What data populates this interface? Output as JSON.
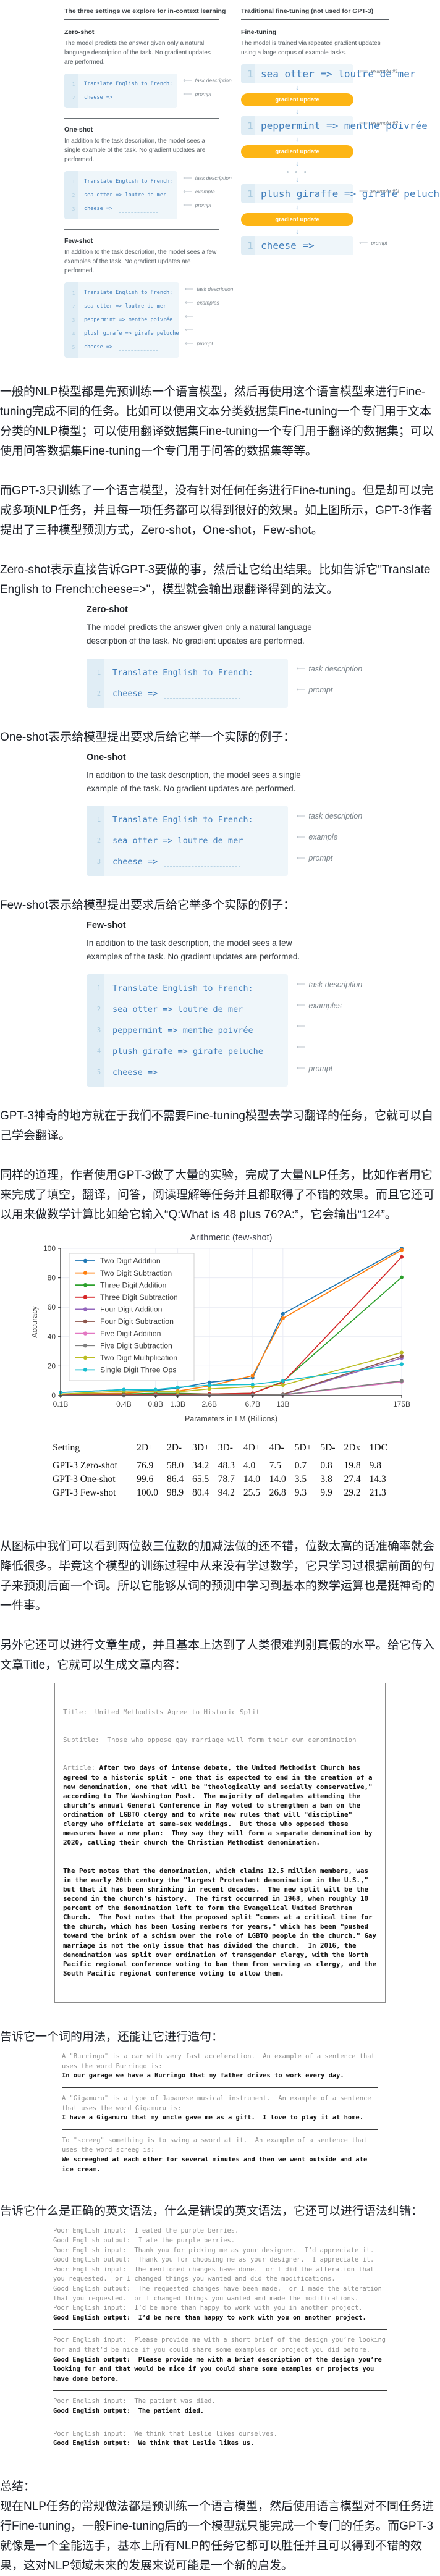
{
  "icons": {
    "left_arrow": "⟵",
    "down_arrow": "↓"
  },
  "figure_top": {
    "left": {
      "heading": "The three settings we explore for in-context learning",
      "zero": {
        "title": "Zero-shot",
        "desc": "The model predicts the answer given only a natural language description of the task. No gradient updates are performed.",
        "code": [
          {
            "n": "1",
            "text": "Translate English to French:",
            "label": "task description"
          },
          {
            "n": "2",
            "text": "cheese =>",
            "label": "prompt",
            "dashed": true
          }
        ]
      },
      "one": {
        "title": "One-shot",
        "desc": "In addition to the task description, the model sees a single example of the task. No gradient updates are performed.",
        "code": [
          {
            "n": "1",
            "text": "Translate English to French:",
            "label": "task description"
          },
          {
            "n": "2",
            "text": "sea otter => loutre de mer",
            "label": "example"
          },
          {
            "n": "3",
            "text": "cheese =>",
            "label": "prompt",
            "dashed": true
          }
        ]
      },
      "few": {
        "title": "Few-shot",
        "desc": "In addition to the task description, the model sees a few examples of the task. No gradient updates are performed.",
        "code": [
          {
            "n": "1",
            "text": "Translate English to French:",
            "label": "task description"
          },
          {
            "n": "2",
            "text": "sea otter => loutre de mer",
            "label": "examples"
          },
          {
            "n": "3",
            "text": "peppermint => menthe poivrée",
            "label": ""
          },
          {
            "n": "4",
            "text": "plush girafe => girafe peluche",
            "label": ""
          },
          {
            "n": "5",
            "text": "cheese =>",
            "label": "prompt",
            "dashed": true
          }
        ]
      }
    },
    "right": {
      "heading": "Traditional fine-tuning (not used for GPT-3)",
      "title": "Fine-tuning",
      "desc": "The model is trained via repeated gradient updates using a large corpus of example tasks.",
      "pill_label": "gradient update",
      "dots": "∘ ∘ ∘",
      "examples": [
        {
          "n": "1",
          "text": "sea otter => loutre de mer",
          "label": "example #1"
        },
        {
          "n": "1",
          "text": "peppermint => menthe poivrée",
          "label": "example #2"
        },
        {
          "n": "1",
          "text": "plush giraffe => girafe peluche",
          "label": "example #N"
        },
        {
          "n": "1",
          "text": "cheese =>",
          "label": "prompt",
          "dashed": true
        }
      ]
    }
  },
  "paragraphs": {
    "p1": "一般的NLP模型都是先预训练一个语言模型，然后再使用这个语言模型来进行Fine-tuning完成不同的任务。比如可以使用文本分类数据集Fine-tuning一个专门用于文本分类的NLP模型；可以使用翻译数据集Fine-tuning一个专门用于翻译的数据集；可以使用问答数据集Fine-tuning一个专门用于问答的数据集等等。",
    "p2": "而GPT-3只训练了一个语言模型，没有针对任何任务进行Fine-tuning。但是却可以完成多项NLP任务，并且每一项任务都可以得到很好的效果。如上图所示，GPT-3作者提出了三种模型预测方式，Zero-shot，One-shot，Few-shot。",
    "p3": "Zero-shot表示直接告诉GPT-3要做的事，然后让它给出结果。比如告诉它\"Translate English to French:cheese=>\"，模型就会输出跟翻译得到的法文。",
    "p4": "One-shot表示给模型提出要求后给它举一个实际的例子：",
    "p5": "Few-shot表示给模型提出要求后给它举多个实际的例子：",
    "p6": "GPT-3神奇的地方就在于我们不需要Fine-tuning模型去学习翻译的任务，它就可以自己学会翻译。",
    "p7": "同样的道理，作者使用GPT-3做了大量的实验，完成了大量NLP任务，比如作者用它来完成了填空，翻译，问答，阅读理解等任务并且都取得了不错的效果。而且它还可以用来做数学计算比如给它输入“Q:What is 48 plus 76?A:”，它会输出“124”。",
    "p8": "从图标中我们可以看到两位数三位数的加减法做的还不错，位数太高的话准确率就会降低很多。毕竟这个模型的训练过程中从来没有学过数学，它只学习过根据前面的句子来预测后面一个词。所以它能够从词的预测中学习到基本的数学运算也是挺神奇的一件事。",
    "p9": "另外它还可以进行文章生成，并且基本上达到了人类很难判别真假的水平。给它传入文章Title，它就可以生成文章内容：",
    "p10": "告诉它一个词的用法，还能让它进行造句：",
    "p11": "告诉它什么是正确的英文语法，什么是错误的英文语法，它还可以进行语法纠错：",
    "summary_title": "总结：",
    "summary": "现在NLP任务的常规做法都是预训练一个语言模型，然后使用语言模型对不同任务进行Fine-tuning，一般Fine-tuning后的一个模型就只能完成一个专门的任务。而GPT-3就像是一个全能选手，基本上所有NLP的任务它都可以胜任并且可以得到不错的效果，这对NLP领域未来的发展来说可能是一个新的启发。"
  },
  "panels": {
    "zero": {
      "title": "Zero-shot",
      "desc": "The model predicts the answer given only a natural language description of the task. No gradient updates are performed.",
      "code": [
        {
          "n": "1",
          "text": "Translate English to French:",
          "label": "task description"
        },
        {
          "n": "2",
          "text": "cheese =>",
          "label": "prompt",
          "dashed": true
        }
      ]
    },
    "one": {
      "title": "One-shot",
      "desc": "In addition to the task description, the model sees a single example of the task. No gradient updates are performed.",
      "code": [
        {
          "n": "1",
          "text": "Translate English to French:",
          "label": "task description"
        },
        {
          "n": "2",
          "text": "sea otter => loutre de mer",
          "label": "example"
        },
        {
          "n": "3",
          "text": "cheese =>",
          "label": "prompt",
          "dashed": true
        }
      ]
    },
    "few": {
      "title": "Few-shot",
      "desc": "In addition to the task description, the model sees a few examples of the task. No gradient updates are performed.",
      "code": [
        {
          "n": "1",
          "text": "Translate English to French:",
          "label": "task description"
        },
        {
          "n": "2",
          "text": "sea otter => loutre de mer",
          "label": "examples"
        },
        {
          "n": "3",
          "text": "peppermint => menthe poivrée",
          "label": ""
        },
        {
          "n": "4",
          "text": "plush girafe => girafe peluche",
          "label": ""
        },
        {
          "n": "5",
          "text": "cheese =>",
          "label": "prompt",
          "dashed": true
        }
      ]
    }
  },
  "chart_data": {
    "type": "line",
    "title": "Arithmetic (few-shot)",
    "xlabel": "Parameters in LM (Billions)",
    "ylabel": "Accuracy",
    "x_scale": "log",
    "x_values": [
      0.1,
      0.4,
      0.8,
      1.3,
      2.6,
      6.7,
      13,
      175
    ],
    "x_tick_labels": [
      "0.1B",
      "0.4B",
      "0.8B",
      "1.3B",
      "2.6B",
      "6.7B",
      "13B",
      "175B"
    ],
    "ylim": [
      0,
      100
    ],
    "y_ticks": [
      0,
      20,
      40,
      60,
      80,
      100
    ],
    "grid": true,
    "legend_position": "upper left",
    "series": [
      {
        "name": "Two Digit Addition",
        "color": "#1f77b4",
        "values": [
          2,
          4,
          3.5,
          5,
          9,
          12,
          55.5,
          100
        ]
      },
      {
        "name": "Two Digit Subtraction",
        "color": "#ff7f0e",
        "values": [
          1,
          1.5,
          3,
          3,
          6.5,
          13.5,
          52.5,
          98.9
        ]
      },
      {
        "name": "Three Digit Addition",
        "color": "#2ca02c",
        "values": [
          1,
          1,
          1.5,
          1.5,
          1,
          1.5,
          9.5,
          80.4
        ]
      },
      {
        "name": "Three Digit Subtraction",
        "color": "#d62728",
        "values": [
          0.5,
          0.5,
          1,
          1,
          1,
          1.5,
          9,
          94.2
        ]
      },
      {
        "name": "Four Digit Addition",
        "color": "#9467bd",
        "values": [
          0.3,
          0.3,
          0.3,
          0.3,
          0.3,
          0.5,
          0.5,
          25.5
        ]
      },
      {
        "name": "Four Digit Subtraction",
        "color": "#8c564b",
        "values": [
          0.3,
          0.3,
          0.3,
          0.3,
          0.5,
          0.8,
          0.8,
          26.8
        ]
      },
      {
        "name": "Five Digit Addition",
        "color": "#e377c2",
        "values": [
          0.1,
          0.1,
          0.1,
          0.1,
          0.1,
          0.3,
          0.3,
          9.3
        ]
      },
      {
        "name": "Five Digit Subtraction",
        "color": "#7f7f7f",
        "values": [
          0.1,
          0.1,
          0.1,
          0.1,
          0.3,
          0.3,
          0.5,
          9.9
        ]
      },
      {
        "name": "Two Digit Multiplication",
        "color": "#bcbd22",
        "values": [
          1,
          3,
          3,
          2.5,
          4.5,
          6,
          7,
          29.2
        ]
      },
      {
        "name": "Single Digit Three Ops",
        "color": "#17becf",
        "values": [
          2,
          4,
          4,
          5.5,
          7,
          7.5,
          10,
          21.3
        ]
      }
    ]
  },
  "table": {
    "headers": [
      "Setting",
      "2D+",
      "2D-",
      "3D+",
      "3D-",
      "4D+",
      "4D-",
      "5D+",
      "5D-",
      "2Dx",
      "1DC"
    ],
    "rows": [
      [
        "GPT-3 Zero-shot",
        "76.9",
        "58.0",
        "34.2",
        "48.3",
        "4.0",
        "7.5",
        "0.7",
        "0.8",
        "19.8",
        "9.8"
      ],
      [
        "GPT-3 One-shot",
        "99.6",
        "86.4",
        "65.5",
        "78.7",
        "14.0",
        "14.0",
        "3.5",
        "3.8",
        "27.4",
        "14.3"
      ],
      [
        "GPT-3 Few-shot",
        "100.0",
        "98.9",
        "80.4",
        "94.2",
        "25.5",
        "26.8",
        "9.3",
        "9.9",
        "29.2",
        "21.3"
      ]
    ]
  },
  "article_box": {
    "title_line": "Title:  United Methodists Agree to Historic Split",
    "subtitle_line": "Subtitle:  Those who oppose gay marriage will form their own denomination",
    "article_label": "Article: ",
    "para1": "After two days of intense debate, the United Methodist Church has agreed to a historic split - one that is expected to end in the creation of a new denomination, one that will be \"theologically and socially conservative,\" according to The Washington Post.  The majority of delegates attending the church’s annual General Conference in May voted to strengthen a ban on the ordination of LGBTQ clergy and to write new rules that will \"discipline\" clergy who officiate at same-sex weddings.  But those who opposed these measures have a new plan:  They say they will form a separate denomination by 2020, calling their church the Christian Methodist denomination.",
    "para2": "The Post notes that the denomination, which claims 12.5 million members, was in the early 20th century the \"largest Protestant denomination in the U.S.,\" but that it has been shrinking in recent decades.  The new split will be the second in the church’s history.  The first occurred in 1968, when roughly 10 percent of the denomination left to form the Evangelical United Brethren Church.  The Post notes that the proposed split \"comes at a critical time for the church, which has been losing members for years,\" which has been \"pushed toward the brink of a schism over the role of LGBTQ people in the church.\" Gay marriage is not the only issue that has divided the church.  In 2016, the denomination was split over ordination of transgender clergy, with the North Pacific regional conference voting to ban them from serving as clergy, and the South Pacific regional conference voting to allow them."
  },
  "word_box": {
    "items": [
      {
        "prompt": "A \"Burringo\" is a car with very fast acceleration.  An example of a sentence that uses the word Burringo is:",
        "output": "In our garage we have a Burringo that my father drives to work every day."
      },
      {
        "prompt": "A \"Gigamuru\" is a type of Japanese musical instrument.  An example of a sentence that uses the word Gigamuru is:",
        "output": "I have a Gigamuru that my uncle gave me as a gift.  I love to play it at home."
      },
      {
        "prompt": "To \"screeg\" something is to swing a sword at it.  An example of a sentence that uses the word screeg is:",
        "output": "We screeghed at each other for several minutes and then we went outside and ate ice cream."
      }
    ]
  },
  "grammar_box": {
    "groups": [
      {
        "lines": [
          {
            "text": "Poor English input:  I eated the purple berries.",
            "bold": false
          },
          {
            "text": "Good English output:  I ate the purple berries.",
            "bold": false
          },
          {
            "text": "Poor English input:  Thank you for picking me as your designer.  I’d appreciate it.",
            "bold": false
          },
          {
            "text": "Good English output:  Thank you for choosing me as your designer.  I appreciate it.",
            "bold": false
          },
          {
            "text": "Poor English input:  The mentioned changes have done.  or I did the alteration that you requested.  or I changed things you wanted and did the modifications.",
            "bold": false
          },
          {
            "text": "Good English output:  The requested changes have been made.  or I made the alteration that you requested.  or I changed things you wanted and made the modifications.",
            "bold": false
          },
          {
            "text": "Poor English input:  I’d be more than happy to work with you in another project.",
            "bold": false
          },
          {
            "text": "Good English output:  I’d be more than happy to work with you on another project.",
            "bold": true
          }
        ]
      },
      {
        "lines": [
          {
            "text": "Poor English input:  Please provide me with a short brief of the design you’re looking for and that’d be nice if you could share some examples or project you did before.",
            "bold": false
          },
          {
            "text": "Good English output:  Please provide me with a brief description of the design you’re looking for and that would be nice if you could share some examples or projects you have done before.",
            "bold": true
          }
        ]
      },
      {
        "lines": [
          {
            "text": "Poor English input:  The patient was died.",
            "bold": false
          },
          {
            "text": "Good English output:  The patient died.",
            "bold": true
          }
        ]
      },
      {
        "lines": [
          {
            "text": "Poor English input:  We think that Leslie likes ourselves.",
            "bold": false
          },
          {
            "text": "Good English output:  We think that Leslie likes us.",
            "bold": true
          }
        ]
      }
    ]
  }
}
